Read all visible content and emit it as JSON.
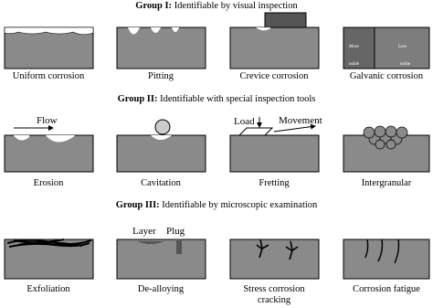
{
  "groups": [
    {
      "lead": "Group I:",
      "text": "Identifiable by visual inspection",
      "items": [
        {
          "label": "Uniform corrosion"
        },
        {
          "label": "Pitting"
        },
        {
          "label": "Crevice corrosion"
        },
        {
          "label": "Galvanic corrosion",
          "annotations": [
            "More",
            "noble",
            "Less",
            "noble"
          ]
        }
      ]
    },
    {
      "lead": "Group II:",
      "text": "Identifiable with special inspection tools",
      "items": [
        {
          "label": "Erosion",
          "annotations": [
            "Flow"
          ]
        },
        {
          "label": "Cavitation"
        },
        {
          "label": "Fretting",
          "annotations": [
            "Load",
            "Movement"
          ]
        },
        {
          "label": "Intergranular"
        }
      ]
    },
    {
      "lead": "Group III:",
      "text": "Identifiable by microscopic examination",
      "items": [
        {
          "label": "Exfoliation"
        },
        {
          "label": "De-alloying",
          "annotations": [
            "Layer",
            "Plug"
          ]
        },
        {
          "label": "Stress corrosion",
          "label2": "cracking"
        },
        {
          "label": "Corrosion fatigue"
        }
      ]
    }
  ]
}
